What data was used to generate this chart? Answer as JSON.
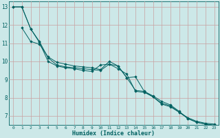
{
  "xlabel": "Humidex (Indice chaleur)",
  "xlim": [
    -0.5,
    23.5
  ],
  "ylim": [
    6.5,
    13.3
  ],
  "yticks": [
    7,
    8,
    9,
    10,
    11,
    12,
    13
  ],
  "xticks": [
    0,
    1,
    2,
    3,
    4,
    5,
    6,
    7,
    8,
    9,
    10,
    11,
    12,
    13,
    14,
    15,
    16,
    17,
    18,
    19,
    20,
    21,
    22,
    23
  ],
  "background_color": "#cce8e8",
  "grid_color": "#c8a0a0",
  "line_color": "#006060",
  "series": [
    {
      "x": [
        0,
        1,
        2,
        3,
        4,
        5,
        6,
        7,
        8,
        9,
        10,
        11,
        12,
        13,
        14,
        15,
        16,
        17,
        18,
        19,
        20,
        21,
        22,
        23
      ],
      "y": [
        13.0,
        13.0,
        11.8,
        11.1,
        10.2,
        9.8,
        9.7,
        9.65,
        9.6,
        9.55,
        9.5,
        9.85,
        9.75,
        9.1,
        9.15,
        8.35,
        8.1,
        7.8,
        7.6,
        7.25,
        6.85,
        6.65,
        6.55,
        6.5
      ]
    },
    {
      "x": [
        0,
        1,
        2,
        3,
        4,
        5,
        6,
        7,
        8,
        9,
        10,
        11,
        12,
        13,
        14,
        15,
        16,
        17,
        18,
        19,
        20,
        21,
        22,
        23
      ],
      "y": [
        13.0,
        13.0,
        11.8,
        11.05,
        10.0,
        9.75,
        9.65,
        9.6,
        9.5,
        9.45,
        9.8,
        9.85,
        9.6,
        9.3,
        8.35,
        8.3,
        8.05,
        7.65,
        7.5,
        7.2,
        6.85,
        6.65,
        6.55,
        6.45
      ]
    },
    {
      "x": [
        1,
        2,
        3,
        4,
        5,
        6,
        7,
        8,
        9,
        10,
        11,
        12,
        13,
        14,
        15,
        16,
        17,
        18,
        19,
        20,
        21,
        22,
        23
      ],
      "y": [
        11.85,
        11.1,
        10.95,
        10.25,
        9.95,
        9.85,
        9.75,
        9.7,
        9.65,
        9.55,
        10.0,
        9.75,
        9.1,
        8.4,
        8.35,
        8.05,
        7.7,
        7.55,
        7.2,
        6.9,
        6.7,
        6.6,
        6.55
      ]
    }
  ]
}
